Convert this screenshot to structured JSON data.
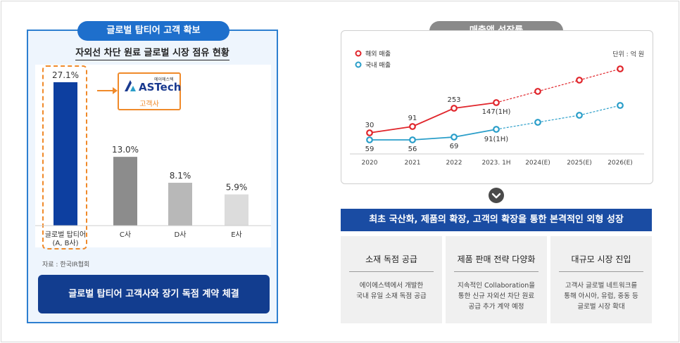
{
  "left": {
    "pill_title": "글로벌 탑티어 고객 확보",
    "chart_title": "자외선 차단 원료 글로벌 시장 점유 현황",
    "logo_small": "에이에스텍",
    "logo_brand": "ASTech",
    "logo_sub": "고객사",
    "source": "자료 : 한국IR협회",
    "cta": "글로벌 탑티어 고객사와 장기 독점 계약 체결"
  },
  "right": {
    "pill_title": "매출액 성장률",
    "unit": "단위 : 억 원",
    "banner": "최초 국산화, 제품의 확장, 고객의 확장을 통한 본격적인 외형 성장",
    "cards": [
      {
        "title": "소재 독점 공급",
        "body_lines": [
          "에이에스텍에서 개발한",
          "국내 유일 소재 독점 공급"
        ]
      },
      {
        "title": "제품 판매 전략 다양화",
        "body_lines": [
          "지속적인 Collaboration을",
          "통한 신규 자외선 차단 원료",
          "공급 추가 계약 예정"
        ]
      },
      {
        "title": "대규모 시장 진입",
        "body_lines": [
          "고객사 글로벌 네트워크를",
          "통해 아시아, 유럽, 중동 등",
          "글로벌 시장 확대"
        ]
      }
    ]
  },
  "colors": {
    "bar_highlight": "#0d3fa0",
    "bar_gray_dark": "#8c8c8c",
    "bar_gray_mid": "#b8b8b8",
    "bar_gray_light": "#dcdcdc",
    "overseas": "#e0252b",
    "domestic": "#2a9ec9",
    "accent_orange": "#f08a2a"
  },
  "chart_data": [
    {
      "type": "bar",
      "title": "자외선 차단 원료 글로벌 시장 점유 현황",
      "categories": [
        "글로벌 탑티어\n(A, B사)",
        "C사",
        "D사",
        "E사"
      ],
      "values": [
        27.1,
        13.0,
        8.1,
        5.9
      ],
      "value_labels": [
        "27.1%",
        "13.0%",
        "8.1%",
        "5.9%"
      ],
      "ylim": [
        0,
        30
      ]
    },
    {
      "type": "line",
      "title": "매출액 성장률",
      "x": [
        "2020",
        "2021",
        "2022",
        "2023. 1H",
        "2024(E)",
        "2025(E)",
        "2026(E)"
      ],
      "series": [
        {
          "name": "해외 매출",
          "values": [
            30,
            91,
            253,
            147,
            null,
            null,
            null
          ],
          "labels": [
            "30",
            "91",
            "253",
            "147(1H)",
            "",
            "",
            ""
          ],
          "projected_index": [
            4,
            5,
            6
          ]
        },
        {
          "name": "국내 매출",
          "values": [
            59,
            56,
            69,
            91,
            null,
            null,
            null
          ],
          "labels": [
            "59",
            "56",
            "69",
            "91(1H)",
            "",
            "",
            ""
          ],
          "projected_index": [
            4,
            5,
            6
          ]
        }
      ],
      "legend": "top-left"
    }
  ]
}
